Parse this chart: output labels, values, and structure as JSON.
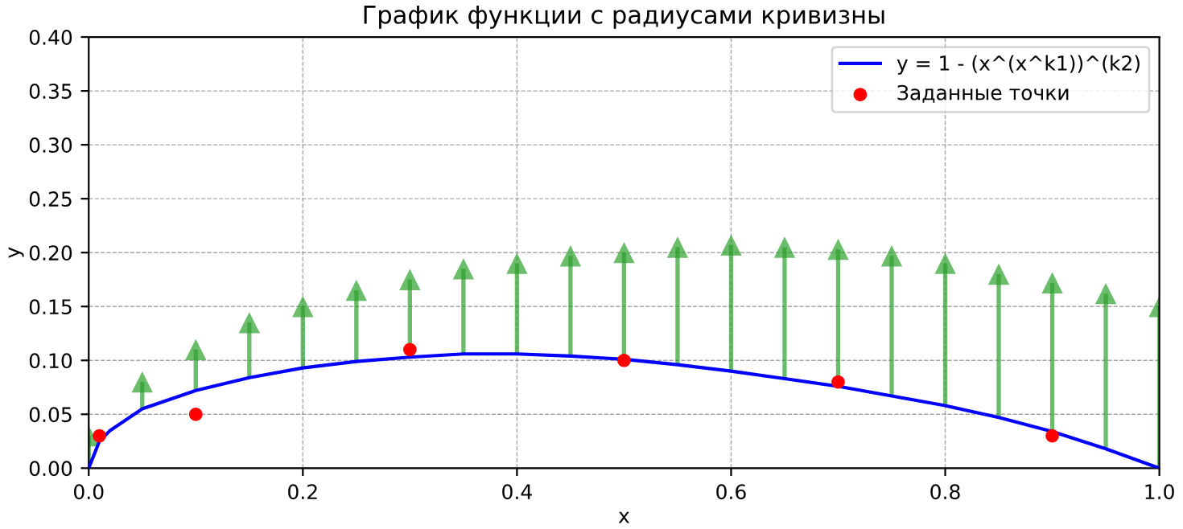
{
  "chart_data": {
    "type": "line",
    "title": "График функции с радиусами кривизны",
    "xlabel": "x",
    "ylabel": "y",
    "xlim": [
      0,
      1
    ],
    "ylim": [
      0,
      0.4
    ],
    "xticks": [
      {
        "value": 0,
        "label": "0.0"
      },
      0.2,
      0.4,
      0.6,
      0.8,
      {
        "value": 1,
        "label": "1.0"
      }
    ],
    "yticks": [
      {
        "value": 0,
        "label": "0.00"
      },
      0.05,
      {
        "value": 0.1,
        "label": "0.10"
      },
      0.15,
      {
        "value": 0.2,
        "label": "0.20"
      },
      0.25,
      {
        "value": 0.3,
        "label": "0.30"
      },
      0.35,
      {
        "value": 0.4,
        "label": "0.40"
      }
    ],
    "grid": true,
    "legend": "top right",
    "series": [
      {
        "type": "scatter",
        "color": "#2ca02c",
        "marker": "triangle",
        "x": [
          0,
          0.05,
          0.1,
          0.15,
          0.2,
          0.25,
          0.3,
          0.35,
          0.4,
          0.45,
          0.5,
          0.55,
          0.6,
          0.65,
          0.7,
          0.75,
          0.8,
          0.85,
          0.9,
          0.95,
          1.0
        ],
        "values": [
          0.03,
          0.08,
          0.11,
          0.135,
          0.15,
          0.165,
          0.175,
          0.185,
          0.19,
          0.197,
          0.2,
          0.205,
          0.207,
          0.205,
          0.203,
          0.197,
          0.19,
          0.18,
          0.172,
          0.162,
          0.15
        ]
      },
      {
        "type": "bar",
        "color": "#2ca02c",
        "x": [
          0,
          0.05,
          0.1,
          0.15,
          0.2,
          0.25,
          0.3,
          0.35,
          0.4,
          0.45,
          0.5,
          0.55,
          0.6,
          0.65,
          0.7,
          0.75,
          0.8,
          0.85,
          0.9,
          0.95,
          1.0
        ],
        "base": [
          0,
          0.055,
          0.072,
          0.084,
          0.093,
          0.099,
          0.103,
          0.106,
          0.106,
          0.104,
          0.101,
          0.096,
          0.09,
          0.083,
          0.076,
          0.067,
          0.058,
          0.047,
          0.034,
          0.018,
          0
        ],
        "values": [
          0.03,
          0.025,
          0.038,
          0.051,
          0.057,
          0.066,
          0.072,
          0.079,
          0.084,
          0.093,
          0.099,
          0.109,
          0.117,
          0.122,
          0.127,
          0.13,
          0.132,
          0.133,
          0.138,
          0.144,
          0.15
        ]
      },
      {
        "name": "y = 1 - (x^(x^k1))^(k2)",
        "color": "#0000ff",
        "marker": "none",
        "x": [
          0,
          0.01,
          0.02,
          0.05,
          0.1,
          0.15,
          0.2,
          0.25,
          0.3,
          0.35,
          0.4,
          0.45,
          0.5,
          0.55,
          0.6,
          0.65,
          0.7,
          0.75,
          0.8,
          0.85,
          0.9,
          0.95,
          1.0
        ],
        "values": [
          0,
          0.025,
          0.035,
          0.055,
          0.072,
          0.084,
          0.093,
          0.099,
          0.103,
          0.106,
          0.106,
          0.104,
          0.101,
          0.096,
          0.09,
          0.083,
          0.076,
          0.067,
          0.058,
          0.047,
          0.034,
          0.018,
          0
        ]
      },
      {
        "type": "scatter",
        "name": "Заданные точки",
        "color": "#ff0000",
        "marker": "circle",
        "x": [
          0.01,
          0.1,
          0.3,
          0.5,
          0.7,
          0.9
        ],
        "values": [
          0.03,
          0.05,
          0.11,
          0.1,
          0.08,
          0.03
        ]
      }
    ]
  }
}
